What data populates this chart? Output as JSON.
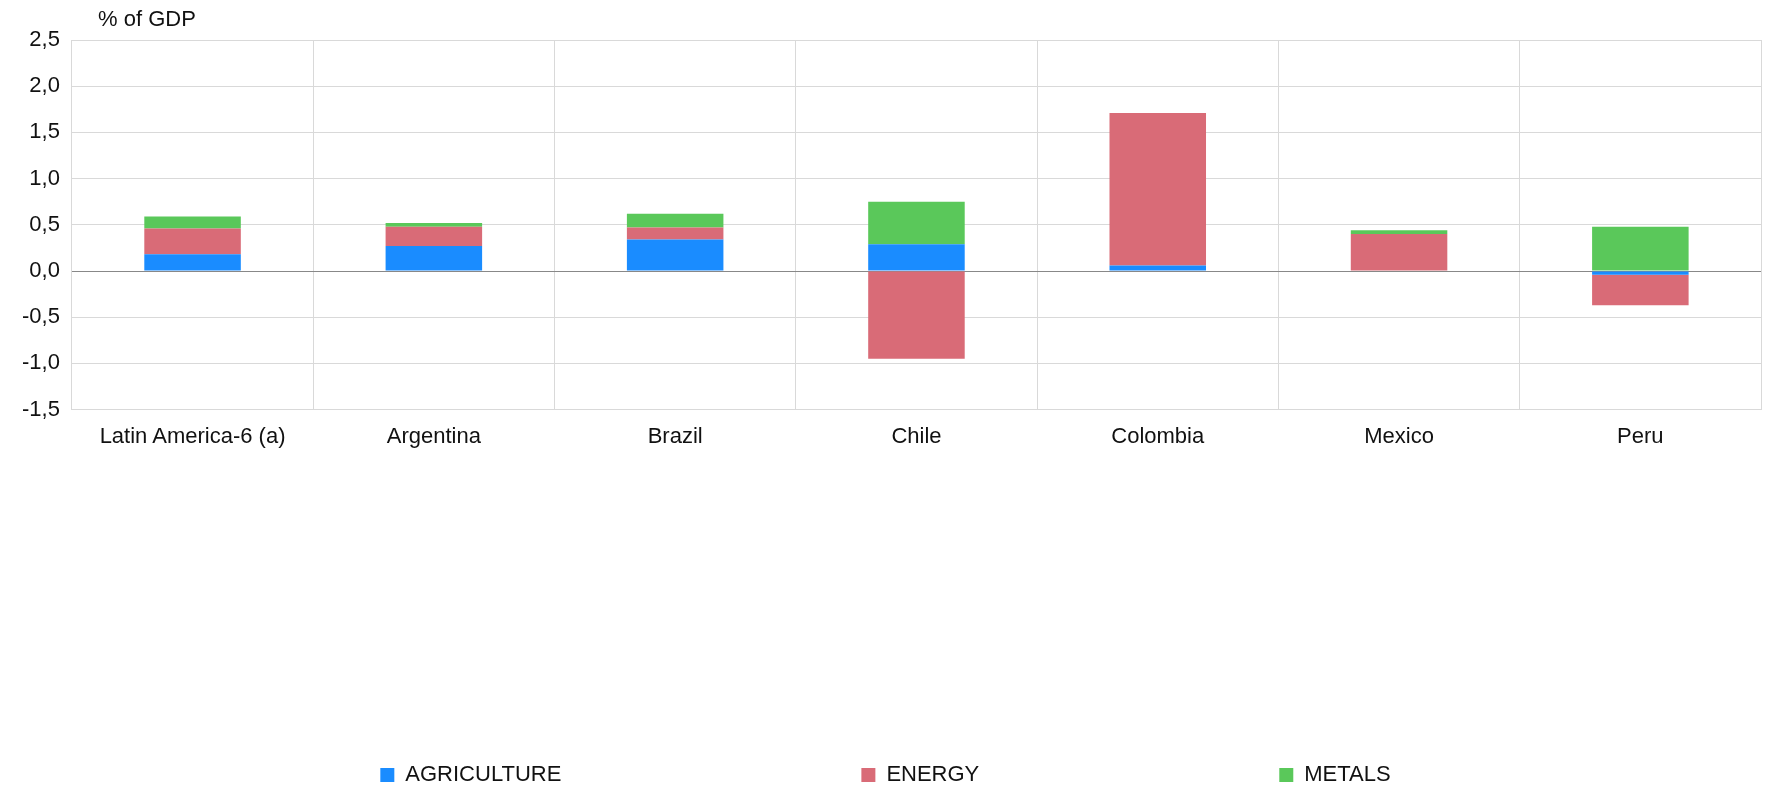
{
  "chart_data": {
    "type": "bar",
    "ylabel": "% of GDP",
    "stacked": true,
    "grid": true,
    "legend": "bottom",
    "categories": [
      "Latin America-6 (a)",
      "Argentina",
      "Brazil",
      "Chile",
      "Colombia",
      "Mexico",
      "Peru"
    ],
    "series": [
      {
        "name": "AGRICULTURE",
        "color": "#1a8cff",
        "values": [
          0.18,
          0.27,
          0.34,
          0.29,
          0.06,
          0,
          -0.04
        ]
      },
      {
        "name": "ENERGY",
        "color": "#d96b77",
        "values": [
          0.28,
          0.21,
          0.13,
          -0.95,
          1.65,
          0.4,
          -0.33
        ]
      },
      {
        "name": "METALS",
        "color": "#5ac85a",
        "values": [
          0.13,
          0.04,
          0.15,
          0.46,
          0,
          0.04,
          0.48
        ]
      }
    ],
    "ylim": [
      -1.5,
      2.5
    ],
    "yticks": [
      {
        "value": -1.5,
        "label": "-1,5"
      },
      {
        "value": -1,
        "label": "-1,0"
      },
      {
        "value": -0.5,
        "label": "-0,5"
      },
      {
        "value": 0,
        "label": "0,0"
      },
      {
        "value": 0.5,
        "label": "0,5"
      },
      {
        "value": 1,
        "label": "1,0"
      },
      {
        "value": 1.5,
        "label": "1,5"
      },
      {
        "value": 2,
        "label": "2,0"
      },
      {
        "value": 2.5,
        "label": "2,5"
      }
    ]
  }
}
